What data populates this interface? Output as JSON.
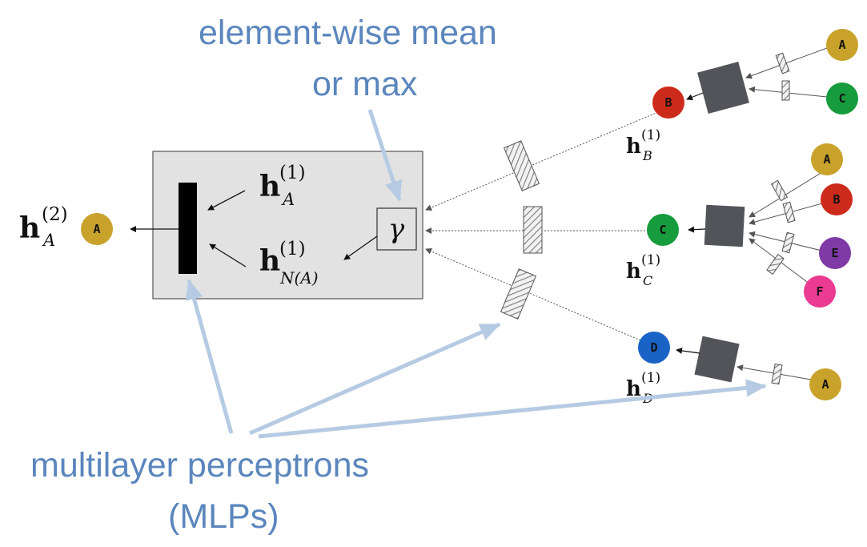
{
  "annotations": {
    "aggregator_line1": "element-wise mean",
    "aggregator_line2": "or max",
    "mlp_line1": "multilayer perceptrons",
    "mlp_line2": "(MLPs)"
  },
  "math": {
    "h_bold": "h",
    "sup1": "(1)",
    "sup2": "(2)",
    "sub_A": "A",
    "sub_N": "N(A)",
    "sub_B": "B",
    "sub_C": "C",
    "sub_D": "D",
    "gamma": "γ"
  },
  "nodes": {
    "output_A": "A",
    "B": "B",
    "C": "C",
    "D": "D",
    "B_in_A": "A",
    "B_in_C": "C",
    "C_in_A": "A",
    "C_in_B": "B",
    "C_in_E": "E",
    "C_in_F": "F",
    "D_in_A": "A"
  },
  "colors": {
    "A": "#c9a22b",
    "B": "#cc2a1a",
    "C": "#169c3c",
    "D": "#1a63c6",
    "E": "#7f3aa6",
    "F": "#ea3a92",
    "annotation": "#5b86bd",
    "arrow_annotation": "#b6cbe3",
    "box_fill": "#e2e2e2",
    "mlp_dark": "#525459"
  }
}
